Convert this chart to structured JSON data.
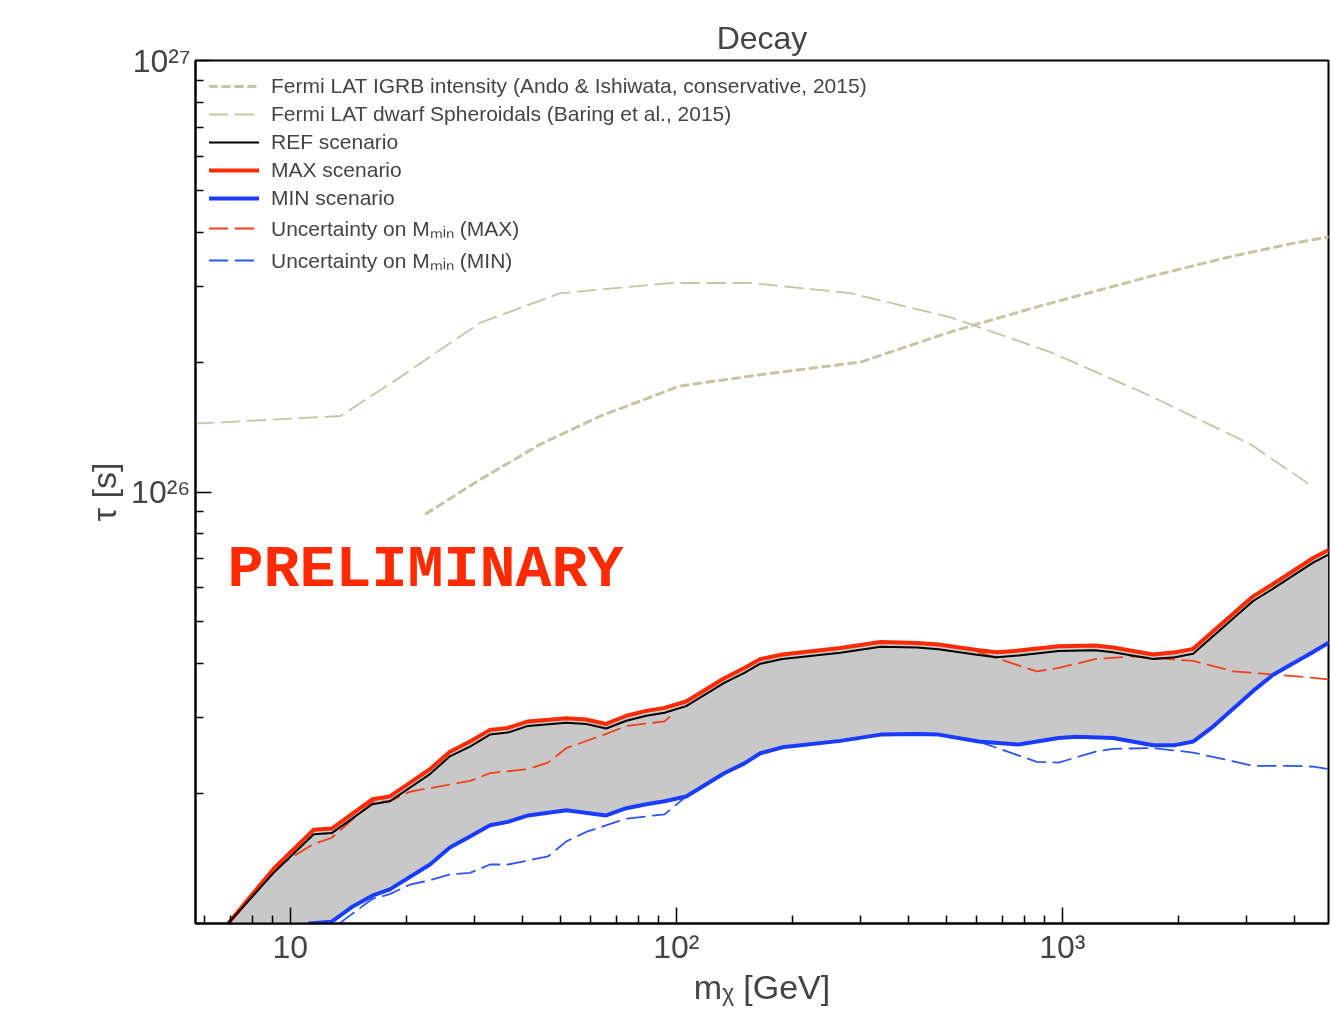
{
  "chart_data": {
    "type": "line",
    "title": "Decay",
    "xlabel": "mᵪ [GeV]",
    "ylabel": "τ [s]",
    "log": "xy",
    "xlim": [
      5.68,
      4890
    ],
    "ylim": [
      1e+25,
      1e+27
    ],
    "xticks": [
      10,
      {
        "value": 100,
        "label": "10²"
      },
      {
        "value": 1000,
        "label": "10³"
      }
    ],
    "yticks": [
      {
        "value": 1e+26,
        "label": "10²⁶"
      },
      {
        "value": 1e+27,
        "label": "10²⁷"
      }
    ],
    "grid": false,
    "legend": "top left",
    "annotations": [
      "PRELIMINARY"
    ],
    "series": [
      {
        "name": "Fermi LAT IGRB intensity (Ando & Ishiwata, conservative, 2015)",
        "color": "#c8c3a5",
        "line_style": "dotted",
        "x": [
          22.5,
          31.1,
          44.4,
          63.6,
          102,
          165,
          300,
          513,
          877,
          1690,
          2724,
          3896,
          4880
        ],
        "values": [
          8.91e+25,
          1.07e+26,
          1.29e+26,
          1.5e+26,
          1.76e+26,
          1.87e+26,
          2e+26,
          2.35e+26,
          2.7e+26,
          3.16e+26,
          3.51e+26,
          3.76e+26,
          3.9e+26
        ]
      },
      {
        "name": "Fermi LAT dwarf Spheroidals (Baring et al., 2015)",
        "color": "#c8c3a5",
        "line_style": "dashed",
        "x": [
          5.68,
          13.5,
          19.3,
          31.1,
          50.1,
          96.5,
          156,
          282,
          513,
          931,
          1690,
          3069,
          4443
        ],
        "values": [
          1.44e+26,
          1.5e+26,
          1.85e+26,
          2.47e+26,
          2.89e+26,
          3.05e+26,
          3.05e+26,
          2.89e+26,
          2.54e+26,
          2.11e+26,
          1.67e+26,
          1.29e+26,
          1.03e+26
        ]
      },
      {
        "name": "REF scenario",
        "color": "#000000",
        "line_style": "solid",
        "x": [
          6.9,
          9.05,
          11.5,
          12.8,
          16.3,
          18.1,
          23.0,
          25.9,
          29.2,
          32.9,
          36.6,
          41.3,
          51.9,
          58.4,
          65.8,
          74.2,
          83.6,
          93.2,
          106,
          133,
          150,
          165,
          188,
          266,
          338,
          420,
          478,
          607,
          676,
          770,
          978,
          1214,
          1353,
          1718,
          1957,
          2181,
          3119,
          3514,
          4461,
          4880
        ],
        "values": [
          1e+25,
          1.31e+25,
          1.61e+25,
          1.62e+25,
          1.89e+25,
          1.92e+25,
          2.22e+25,
          2.44e+25,
          2.57e+25,
          2.74e+25,
          2.77e+25,
          2.87e+25,
          2.92e+25,
          2.9e+25,
          2.83e+25,
          2.95e+25,
          3.03e+25,
          3.08e+25,
          3.19e+25,
          3.61e+25,
          3.81e+25,
          4e+25,
          4.1e+25,
          4.24e+25,
          4.38e+25,
          4.36e+25,
          4.32e+25,
          4.19e+25,
          4.14e+25,
          4.18e+25,
          4.28e+25,
          4.3e+25,
          4.25e+25,
          4.1e+25,
          4.14e+25,
          4.22e+25,
          5.59e+25,
          5.97e+25,
          6.86e+25,
          7.15e+25
        ],
        "upper": [
          1e+25,
          1.34e+25,
          1.65e+25,
          1.66e+25,
          1.94e+25,
          1.97e+25,
          2.28e+25,
          2.5e+25,
          2.64e+25,
          2.81e+25,
          2.84e+25,
          2.94e+25,
          2.99e+25,
          2.97e+25,
          2.9e+25,
          3.03e+25,
          3.11e+25,
          3.16e+25,
          3.27e+25,
          3.7e+25,
          3.91e+25,
          4.1e+25,
          4.2e+25,
          4.35e+25,
          4.49e+25,
          4.47e+25,
          4.43e+25,
          4.3e+25,
          4.25e+25,
          4.29e+25,
          4.39e+25,
          4.41e+25,
          4.36e+25,
          4.2e+25,
          4.25e+25,
          4.33e+25,
          5.73e+25,
          6.12e+25,
          7.03e+25,
          7.33e+25
        ],
        "lower": [
          1e+25,
          1e+25,
          1e+25,
          1.01e+25,
          1.16e+25,
          1.2e+25,
          1.37e+25,
          1.5e+25,
          1.59e+25,
          1.69e+25,
          1.72e+25,
          1.78e+25,
          1.83e+25,
          1.81e+25,
          1.78e+25,
          1.85e+25,
          1.89e+25,
          1.92e+25,
          1.97e+25,
          2.23e+25,
          2.35e+25,
          2.48e+25,
          2.56e+25,
          2.65e+25,
          2.74e+25,
          2.75e+25,
          2.74e+25,
          2.64e+25,
          2.62e+25,
          2.6e+25,
          2.69e+25,
          2.7e+25,
          2.69e+25,
          2.59e+25,
          2.59e+25,
          2.64e+25,
          3.46e+25,
          3.77e+25,
          4.26e+25,
          4.47e+25
        ]
      },
      {
        "name": "MAX scenario",
        "color": "#ff2a00",
        "line_style": "solid",
        "x": [
          6.9,
          9.05,
          11.5,
          12.8,
          16.3,
          18.1,
          23.0,
          25.9,
          29.2,
          32.9,
          36.6,
          41.3,
          51.9,
          58.4,
          65.8,
          74.2,
          83.6,
          93.2,
          106,
          133,
          150,
          165,
          188,
          266,
          338,
          420,
          478,
          607,
          676,
          770,
          978,
          1214,
          1353,
          1718,
          1957,
          2181,
          3119,
          3514,
          4461,
          4880
        ],
        "values": [
          1e+25,
          1.34e+25,
          1.65e+25,
          1.66e+25,
          1.94e+25,
          1.97e+25,
          2.28e+25,
          2.5e+25,
          2.64e+25,
          2.81e+25,
          2.84e+25,
          2.94e+25,
          2.99e+25,
          2.97e+25,
          2.9e+25,
          3.03e+25,
          3.11e+25,
          3.16e+25,
          3.27e+25,
          3.7e+25,
          3.91e+25,
          4.1e+25,
          4.2e+25,
          4.35e+25,
          4.49e+25,
          4.47e+25,
          4.43e+25,
          4.3e+25,
          4.25e+25,
          4.29e+25,
          4.39e+25,
          4.41e+25,
          4.36e+25,
          4.2e+25,
          4.25e+25,
          4.33e+25,
          5.73e+25,
          6.12e+25,
          7.03e+25,
          7.33e+25
        ]
      },
      {
        "name": "MIN scenario",
        "color": "#1a3cff",
        "line_style": "solid",
        "x": [
          11.2,
          12.8,
          14.4,
          16.3,
          18.1,
          23.0,
          25.9,
          29.2,
          32.9,
          36.6,
          41.3,
          51.9,
          65.8,
          74.2,
          83.6,
          93.2,
          106,
          133,
          150,
          165,
          188,
          266,
          338,
          420,
          478,
          607,
          770,
          978,
          1088,
          1353,
          1718,
          1957,
          2181,
          2457,
          3119,
          3514,
          4461,
          4880
        ],
        "values": [
          1e+25,
          1.01e+25,
          1.09e+25,
          1.16e+25,
          1.2e+25,
          1.37e+25,
          1.5e+25,
          1.59e+25,
          1.69e+25,
          1.72e+25,
          1.78e+25,
          1.83e+25,
          1.78e+25,
          1.85e+25,
          1.89e+25,
          1.92e+25,
          1.97e+25,
          2.23e+25,
          2.35e+25,
          2.48e+25,
          2.56e+25,
          2.65e+25,
          2.74e+25,
          2.75e+25,
          2.74e+25,
          2.64e+25,
          2.6e+25,
          2.69e+25,
          2.71e+25,
          2.69e+25,
          2.59e+25,
          2.59e+25,
          2.64e+25,
          2.86e+25,
          3.46e+25,
          3.77e+25,
          4.26e+25,
          4.47e+25
        ]
      },
      {
        "name": "Uncertainty on Mₘᵢₙ (MAX)",
        "color": "#f0401c",
        "line_style": "dashed",
        "x": [
          9.05,
          11.5,
          12.8,
          16.3,
          18.1,
          20.4,
          23.0,
          29.2,
          32.9,
          41.3,
          46.5,
          51.9,
          65.8,
          74.2,
          93.2,
          99.4,
          300,
          607,
          858,
          978,
          1214,
          1508,
          2181,
          2768,
          3917,
          4880
        ],
        "values": [
          1.34e+25,
          1.53e+25,
          1.58e+25,
          1.91e+25,
          1.92e+25,
          2.02e+25,
          2.06e+25,
          2.14e+25,
          2.23e+25,
          2.28e+25,
          2.36e+25,
          2.55e+25,
          2.75e+25,
          2.87e+25,
          2.94e+25,
          3.09e+25,
          null,
          4.25e+25,
          3.84e+25,
          3.91e+25,
          4.1e+25,
          4.16e+25,
          4.06e+25,
          3.84e+25,
          3.75e+25,
          3.68e+25
        ]
      },
      {
        "name": "Uncertainty on Mₘᵢₙ (MIN)",
        "color": "#2f55f0",
        "line_style": "dashed",
        "x": [
          13.4,
          14.4,
          16.3,
          18.1,
          20.4,
          23.0,
          25.9,
          29.2,
          32.9,
          36.6,
          46.5,
          51.9,
          58.4,
          74.2,
          93.2,
          106,
          300,
          607,
          858,
          978,
          1214,
          1353,
          1718,
          2181,
          3119,
          3917,
          4461,
          4880
        ],
        "values": [
          1e+25,
          1.05e+25,
          1.14e+25,
          1.17e+25,
          1.23e+25,
          1.26e+25,
          1.3e+25,
          1.31e+25,
          1.37e+25,
          1.37e+25,
          1.43e+25,
          1.55e+25,
          1.63e+25,
          1.75e+25,
          1.79e+25,
          1.97e+25,
          null,
          2.64e+25,
          2.37e+25,
          2.36e+25,
          2.5e+25,
          2.54e+25,
          2.55e+25,
          2.49e+25,
          2.32e+25,
          2.32e+25,
          2.31e+25,
          2.28e+25
        ]
      }
    ]
  }
}
